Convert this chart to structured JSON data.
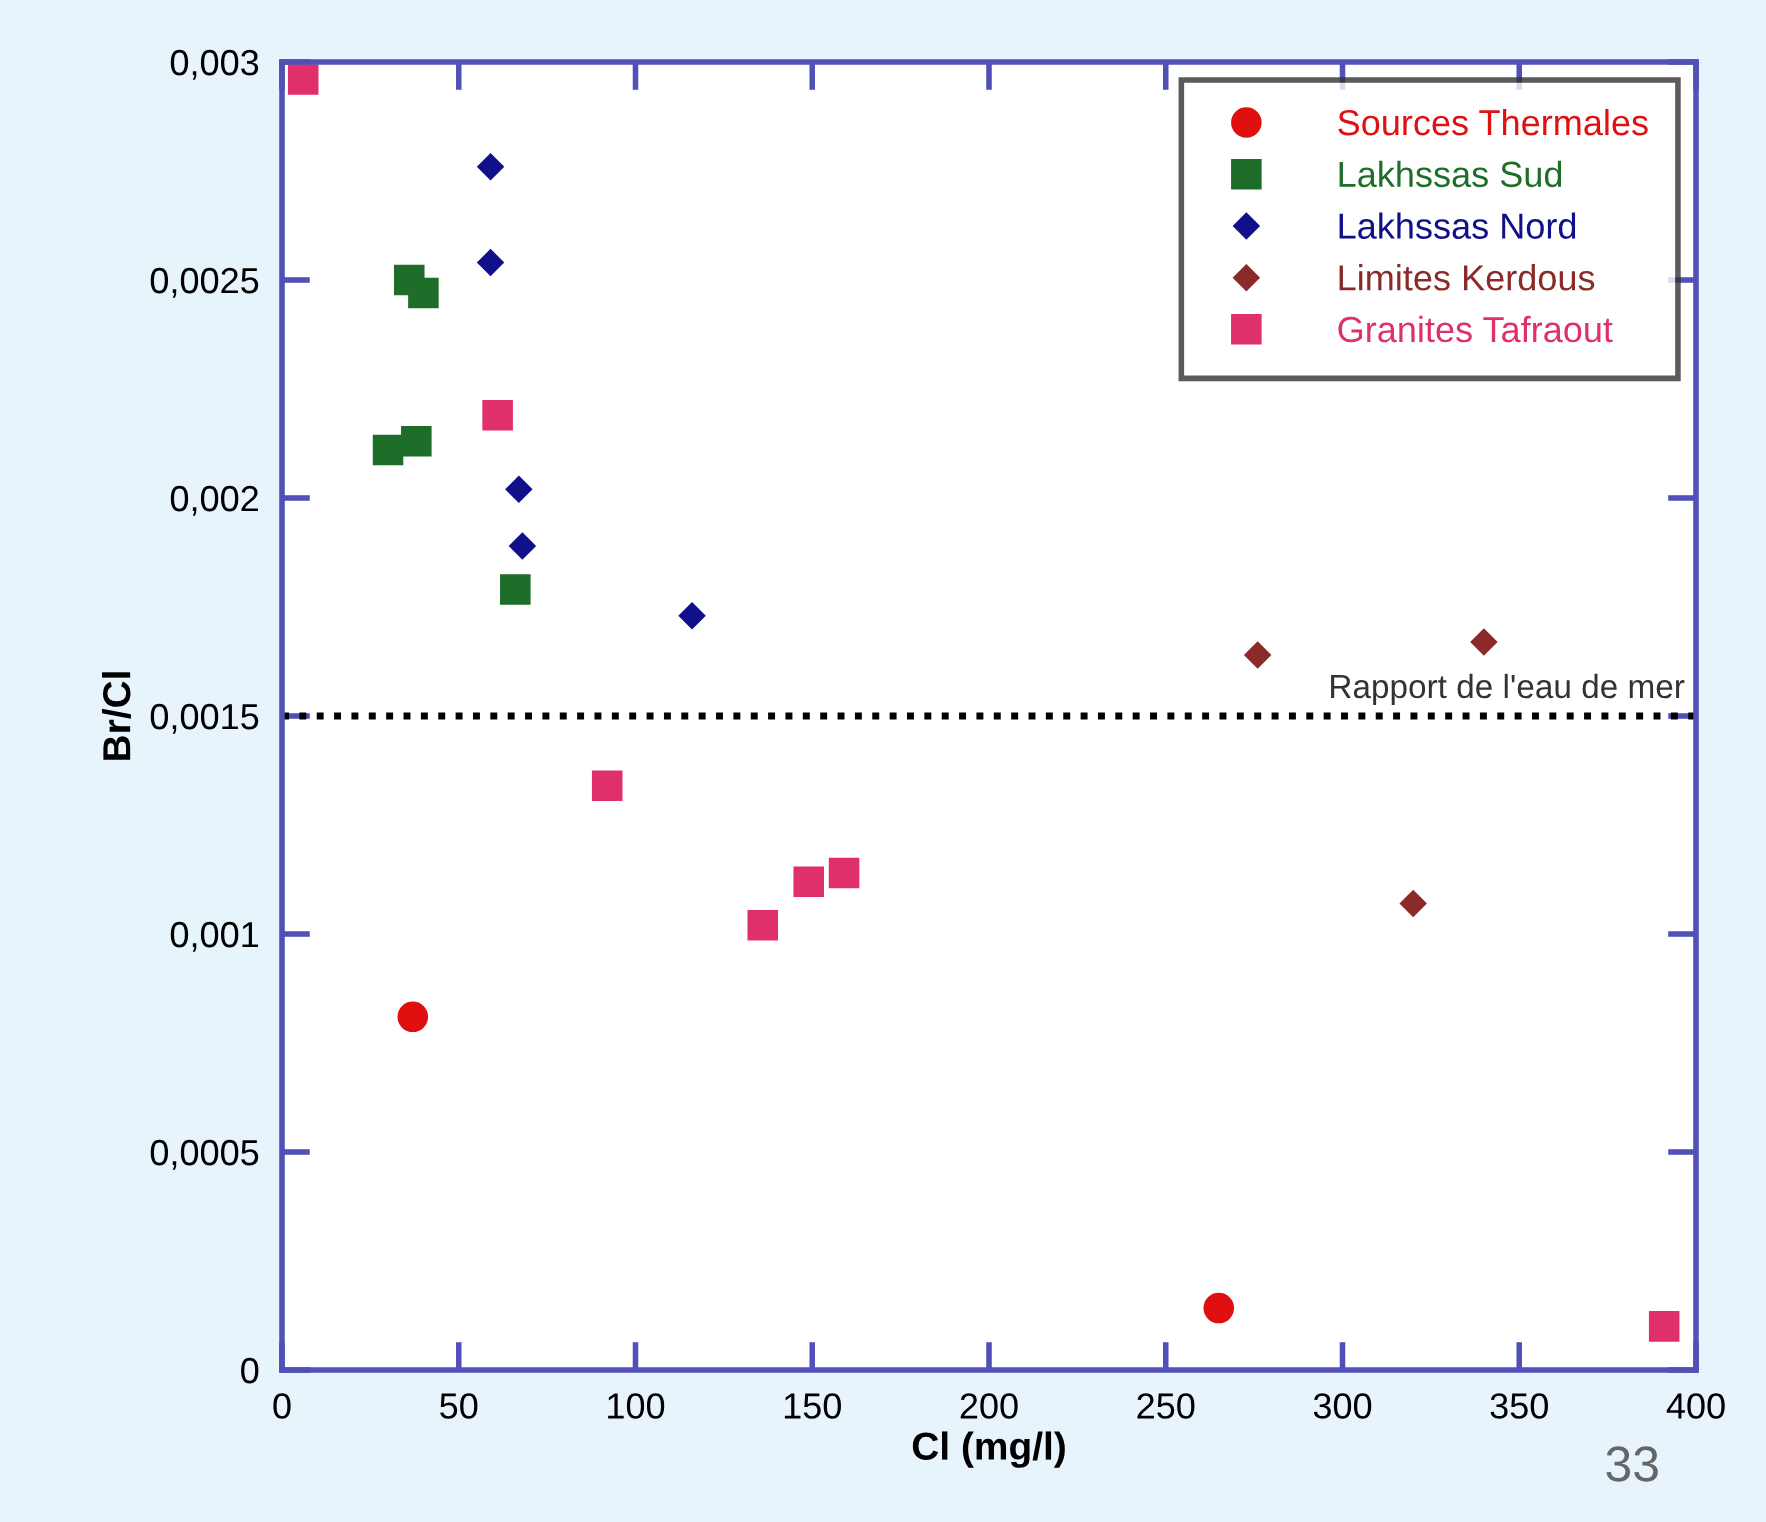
{
  "chart_data": {
    "type": "scatter",
    "xlabel": "Cl (mg/l)",
    "ylabel": "Br/Cl",
    "xlim": [
      0,
      400
    ],
    "xticks": [
      0,
      50,
      100,
      150,
      200,
      250,
      300,
      350,
      400
    ],
    "ylim": [
      0,
      0.003
    ],
    "yticks": [
      {
        "value": 0,
        "label": "0"
      },
      {
        "value": 0.0005,
        "label": "0,0005"
      },
      {
        "value": 0.001,
        "label": "0,001"
      },
      {
        "value": 0.0015,
        "label": "0,0015"
      },
      {
        "value": 0.002,
        "label": "0,002"
      },
      {
        "value": 0.0025,
        "label": "0,0025"
      },
      {
        "value": 0.003,
        "label": "0,003"
      }
    ],
    "grid": false,
    "legend": "top right",
    "series": [
      {
        "name": "Sources Thermales",
        "color": "#e01010",
        "marker": "circle",
        "x": [
          37,
          265
        ],
        "values": [
          0.00081,
          0.000142
        ]
      },
      {
        "name": "Lakhssas Sud",
        "color": "#1e6e2a",
        "marker": "square",
        "x": [
          36,
          40,
          30,
          38,
          66
        ],
        "values": [
          0.0025,
          0.00247,
          0.00211,
          0.00213,
          0.00179
        ]
      },
      {
        "name": "Lakhssas Nord",
        "color": "#10108a",
        "marker": "diamond",
        "x": [
          59,
          59,
          67,
          68,
          116
        ],
        "values": [
          0.00276,
          0.00254,
          0.00202,
          0.00189,
          0.00173
        ]
      },
      {
        "name": "Limites Kerdous",
        "color": "#8b2a2a",
        "marker": "diamond",
        "x": [
          276,
          340,
          320
        ],
        "values": [
          0.00164,
          0.00167,
          0.00107
        ]
      },
      {
        "name": "Granites Tafraout",
        "color": "#e0306a",
        "marker": "square",
        "x": [
          6,
          61,
          92,
          136,
          149,
          159,
          391
        ],
        "values": [
          0.00296,
          0.00219,
          0.00134,
          0.00102,
          0.00112,
          0.00114,
          0.0001
        ]
      }
    ],
    "ref_lines": [
      {
        "axis": "y",
        "value": 0.0015,
        "label": "Rapport de l'eau de mer",
        "color": "#000000",
        "line_style": "dotted"
      }
    ],
    "annotations": [
      "33"
    ]
  }
}
